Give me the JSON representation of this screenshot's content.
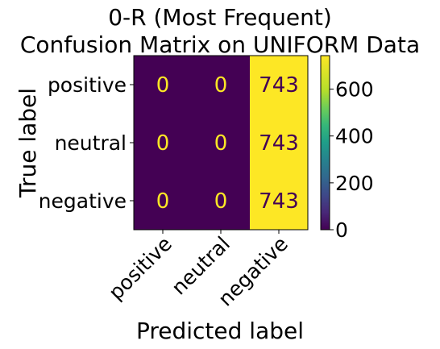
{
  "chart_data": {
    "type": "heatmap",
    "title_lines": [
      "0-R (Most Frequent)",
      "Confusion Matrix on UNIFORM Data"
    ],
    "xlabel": "Predicted label",
    "ylabel": "True label",
    "x_categories": [
      "positive",
      "neutral",
      "negative"
    ],
    "y_categories": [
      "positive",
      "neutral",
      "negative"
    ],
    "values": [
      [
        0,
        0,
        743
      ],
      [
        0,
        0,
        743
      ],
      [
        0,
        0,
        743
      ]
    ],
    "colormap": "viridis",
    "vmin": 0,
    "vmax": 743,
    "colorbar_ticks": [
      0,
      200,
      400,
      600
    ],
    "colors": {
      "low": "#440154",
      "high": "#fde725",
      "text_on_low": "#fde725",
      "text_on_high": "#440154"
    }
  }
}
